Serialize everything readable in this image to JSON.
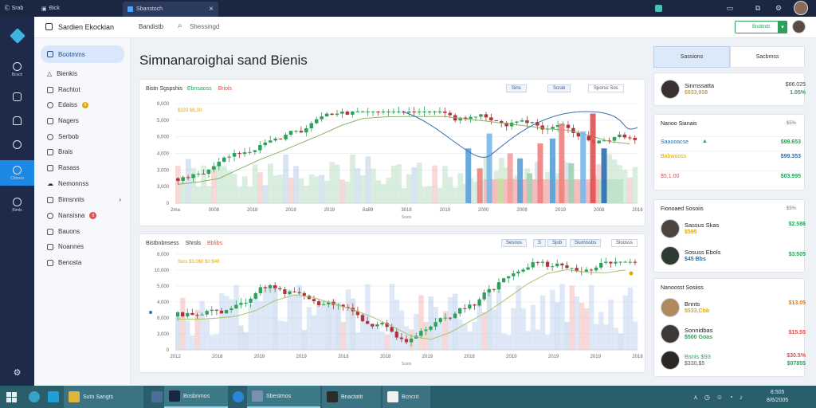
{
  "titlebar": {
    "menu1": "Srab",
    "menu2": "Bick",
    "tab1": "Bick",
    "tab2": "Sbanstoch",
    "close_glyph": "×",
    "new_tab_glyph": "+"
  },
  "header": {
    "app_title": "Sardien Ekockian",
    "nav_link": "Bandistb",
    "search_value": "Shessingd",
    "action_label": "Bnditnttt"
  },
  "rail": {
    "items": [
      {
        "label": "Bcsch"
      },
      {
        "label": ""
      },
      {
        "label": ""
      },
      {
        "label": ""
      },
      {
        "label": "Cbboss"
      },
      {
        "label": "Bimls"
      }
    ]
  },
  "sidebar": {
    "items": [
      {
        "label": "Bootmms"
      },
      {
        "label": "Bienkis"
      },
      {
        "label": "Rachtot"
      },
      {
        "label": "Edaiss"
      },
      {
        "label": "Nagers"
      },
      {
        "label": "Serbob"
      },
      {
        "label": "Brais"
      },
      {
        "label": "Rasass"
      },
      {
        "label": "Nemonnss"
      },
      {
        "label": "Bimsnnts"
      },
      {
        "label": "Nansisna"
      },
      {
        "label": "Bauons"
      },
      {
        "label": "Noannes"
      },
      {
        "label": "Benosta"
      }
    ],
    "badge_count": "8",
    "badge2_count": "8"
  },
  "main": {
    "page_title": "Simnanaroighai sand Bienis"
  },
  "chart1": {
    "title": "Bistn Sgspshis",
    "title_tag": "Ebnsaoss",
    "title_tag2": "Briols",
    "legend": "$333 $6,30",
    "controls": [
      "Sins",
      "Scrak",
      "Sporss Sos"
    ],
    "y_labels": [
      "8,000",
      "5,000",
      "6,000",
      "4,000",
      "3,000",
      "3,000",
      "0"
    ],
    "x_labels": [
      "2ma",
      "0008",
      "2018",
      "2018",
      "2019",
      "8a89",
      "3018",
      "2019",
      "2000",
      "2008",
      "2019",
      "2008",
      "2016"
    ],
    "x_sub": "Sosts"
  },
  "chart2": {
    "title": "Bistbnbnsess",
    "title_tag": "Shrsls",
    "title_tag2": "Bblibs",
    "legend": "Sors $3.0$0 $0 $48",
    "controls": [
      "Sesnos",
      "S",
      "Sjob",
      "Siumissbs",
      "Sloosss"
    ],
    "y_labels": [
      "8,000",
      "10,000",
      "5,000",
      "4,000",
      "8,000",
      "3,000",
      "0"
    ],
    "x_labels": [
      "2012",
      "2018",
      "2019",
      "2019",
      "2018",
      "2018",
      "2019",
      "2018",
      "2019",
      "2019",
      "2019",
      "2018"
    ],
    "x_sub": "Sosts"
  },
  "right_panel": {
    "tabs": [
      "Sassions",
      "Sacbmss"
    ],
    "top_person": {
      "name": "Sinmssatta",
      "value": "$833,938",
      "r1": "$66.025",
      "r2": "1.05%"
    },
    "watch": {
      "title": "Nanoo Sianais",
      "title_r": "$5%",
      "rows": [
        {
          "label": "Saaooacse",
          "value": "$98.653"
        },
        {
          "label": "Babwooss",
          "value": "$99.353"
        },
        {
          "label": "$5,1.00",
          "value": "$03.995"
        }
      ]
    },
    "people1": {
      "title": "Fionoaed Sosoiis",
      "title_r": "$5%",
      "rows": [
        {
          "name": "Sassus Skas",
          "value": "$595",
          "r1": "$2.586"
        },
        {
          "name": "Sosuss Ebols",
          "value": "$45 Bbs",
          "r1": "$3.505"
        }
      ]
    },
    "people2": {
      "title": "Nanoosst Sosiiss",
      "title_r": "",
      "rows": [
        {
          "name": "Bnnts",
          "value": "$533,Cbb",
          "r1": "$13.05"
        },
        {
          "name": "Sonnidbas",
          "value": "$500 Goas",
          "r1": "$15.55"
        },
        {
          "name": "Bsnis $93",
          "value": "$330,$5",
          "r1": "$30.5%",
          "r2": "$07855"
        }
      ]
    }
  },
  "taskbar": {
    "search_text": "Sutn Sangts",
    "tasks": [
      "Bosbnmos",
      "Sbestmos",
      "Bnactatit",
      "Bcncnt"
    ],
    "clock_time": "8:505",
    "clock_date": "8/6/2005"
  },
  "colors": {
    "nav_dark": "#1b2641",
    "rail_blue": "#1e88e5",
    "green": "#2e9f5b",
    "red": "#d9534f",
    "gold": "#e0a800",
    "taskbar": "#2b5e6b"
  }
}
